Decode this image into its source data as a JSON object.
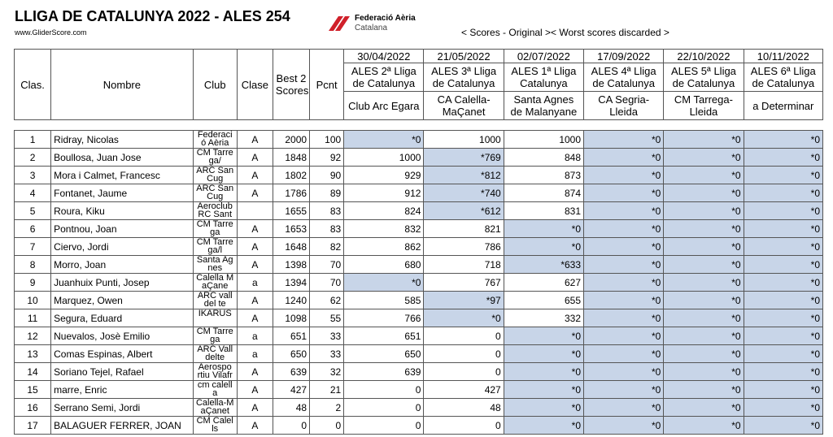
{
  "header": {
    "title": "LLIGA DE CATALUNYA 2022 - ALES 254",
    "site": "www.GliderScore.com",
    "logo_line1": "Federació Aèria",
    "logo_line2": "Catalana",
    "legend": "< Scores - Original >< Worst scores discarded >"
  },
  "table": {
    "columns": [
      "Clas.",
      "Nombre",
      "Club",
      "Clase",
      "Best 2 Scores",
      "Pcnt"
    ],
    "competitions": [
      {
        "date": "30/04/2022",
        "name": "ALES 2ª Lliga de Catalunya",
        "club": "Club Arc Egara"
      },
      {
        "date": "21/05/2022",
        "name": "ALES 3ª Lliga de Catalunya",
        "club": "CA Calella-MaÇanet"
      },
      {
        "date": "02/07/2022",
        "name": "ALES 1ª Lliga Catalunya",
        "club": "Santa Agnes de Malanyane"
      },
      {
        "date": "17/09/2022",
        "name": "ALES 4ª Lliga de Catalunya",
        "club": "CA Segria-Lleida"
      },
      {
        "date": "22/10/2022",
        "name": "ALES 5ª Lliga de Catalunya",
        "club": "CM Tarrega-Lleida"
      },
      {
        "date": "10/11/2022",
        "name": "ALES 6ª Lliga de Catalunya",
        "club": "a Determinar"
      }
    ],
    "rows": [
      [
        1,
        "Ridray, Nicolas",
        "Federació Aèria",
        "A",
        2000,
        100,
        "*0",
        1000,
        1000,
        "*0",
        "*0",
        "*0"
      ],
      [
        2,
        "Boullosa, Juan Jose",
        "CM Tarrega/",
        "A",
        1848,
        92,
        1000,
        "*769",
        848,
        "*0",
        "*0",
        "*0"
      ],
      [
        3,
        "Mora i Calmet, Francesc",
        "ARC San Cug",
        "A",
        1802,
        90,
        929,
        "*812",
        873,
        "*0",
        "*0",
        "*0"
      ],
      [
        4,
        "Fontanet, Jaume",
        "ARC San Cug",
        "A",
        1786,
        89,
        912,
        "*740",
        874,
        "*0",
        "*0",
        "*0"
      ],
      [
        5,
        "Roura, Kiku",
        "Aeroclub RC Sant",
        null,
        1655,
        83,
        824,
        "*612",
        831,
        "*0",
        "*0",
        "*0"
      ],
      [
        6,
        "Pontnou, Joan",
        "CM Tarrega",
        "A",
        1653,
        83,
        832,
        821,
        "*0",
        "*0",
        "*0",
        "*0"
      ],
      [
        7,
        "Ciervo, Jordi",
        "CM Tarrega/l",
        "A",
        1648,
        82,
        862,
        786,
        "*0",
        "*0",
        "*0",
        "*0"
      ],
      [
        8,
        "Morro, Joan",
        "Santa Agnes",
        "A",
        1398,
        70,
        680,
        718,
        "*633",
        "*0",
        "*0",
        "*0"
      ],
      [
        9,
        "Juanhuix Punti, Josep",
        "Calella MaÇane",
        "a",
        1394,
        70,
        "*0",
        767,
        627,
        "*0",
        "*0",
        "*0"
      ],
      [
        10,
        "Marquez, Owen",
        "ARC valldel te",
        "A",
        1240,
        62,
        585,
        "*97",
        655,
        "*0",
        "*0",
        "*0"
      ],
      [
        11,
        "Segura, Eduard",
        "IKARUS",
        "A",
        1098,
        55,
        766,
        "*0",
        332,
        "*0",
        "*0",
        "*0"
      ],
      [
        12,
        "Nuevalos, Josè Emilio",
        "CM Tarrega",
        "a",
        651,
        33,
        651,
        0,
        "*0",
        "*0",
        "*0",
        "*0"
      ],
      [
        13,
        "Comas Espinas, Albert",
        "ARC Valldelte",
        "a",
        650,
        33,
        650,
        0,
        "*0",
        "*0",
        "*0",
        "*0"
      ],
      [
        14,
        "Soriano Tejel, Rafael",
        "Aerospo rtiu Vilafr",
        "A",
        639,
        32,
        639,
        0,
        "*0",
        "*0",
        "*0",
        "*0"
      ],
      [
        15,
        "marre, Enric",
        "cm calella",
        "A",
        427,
        21,
        0,
        427,
        "*0",
        "*0",
        "*0",
        "*0"
      ],
      [
        16,
        "Serrano Semi, Jordi",
        "Calella-MaÇanet",
        "A",
        48,
        2,
        0,
        48,
        "*0",
        "*0",
        "*0",
        "*0"
      ],
      [
        17,
        "BALAGUER FERRER, JOAN",
        "CM Calells",
        "A",
        0,
        0,
        0,
        0,
        "*0",
        "*0",
        "*0",
        "*0"
      ]
    ]
  }
}
